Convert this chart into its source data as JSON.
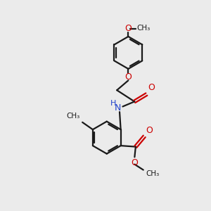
{
  "background_color": "#ebebeb",
  "bond_color": "#1a1a1a",
  "oxygen_color": "#cc0000",
  "nitrogen_color": "#2244cc",
  "line_width": 1.6,
  "figsize": [
    3.0,
    3.0
  ],
  "dpi": 100,
  "xlim": [
    0,
    10
  ],
  "ylim": [
    0,
    10
  ]
}
